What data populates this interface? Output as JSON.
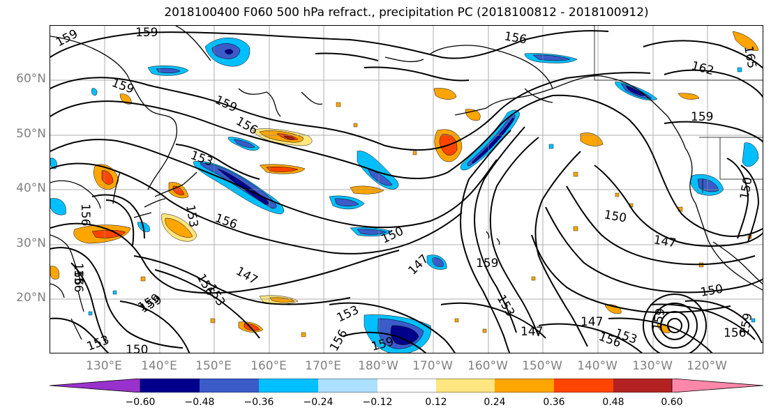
{
  "title": "2018100400 F060 500 hPa refract., precipitation PC (2018100812 - 2018100912)",
  "lat_labels": [
    "60°N",
    "50°N",
    "40°N",
    "30°N",
    "20°N"
  ],
  "lon_labels": [
    "130°E",
    "140°E",
    "150°E",
    "160°E",
    "170°E",
    "180°W",
    "170°W",
    "160°W",
    "150°W",
    "140°W",
    "130°W",
    "120°W"
  ],
  "colorbar": {
    "ticks": [
      "−0.60",
      "−0.48",
      "−0.36",
      "−0.24",
      "−0.12",
      "0.12",
      "0.24",
      "0.36",
      "0.48",
      "0.60"
    ],
    "colors": [
      "#9932CC",
      "#00008B",
      "#3A5BC8",
      "#00BFFF",
      "#ADDFFF",
      "#FFFFFF",
      "#FFE680",
      "#FFA500",
      "#FF4500",
      "#B22222",
      "#FF88AA"
    ]
  },
  "contour_labels": [
    {
      "text": "159"
    },
    {
      "text": "159"
    },
    {
      "text": "159"
    },
    {
      "text": "159"
    },
    {
      "text": "156"
    },
    {
      "text": "153"
    },
    {
      "text": "156"
    },
    {
      "text": "156"
    },
    {
      "text": "150"
    },
    {
      "text": "147"
    },
    {
      "text": "147"
    },
    {
      "text": "159"
    },
    {
      "text": "156"
    },
    {
      "text": "162"
    },
    {
      "text": "159"
    },
    {
      "text": "150"
    },
    {
      "text": "147"
    },
    {
      "text": "150"
    },
    {
      "text": "147"
    },
    {
      "text": "147"
    },
    {
      "text": "153"
    },
    {
      "text": "156"
    },
    {
      "text": "153"
    },
    {
      "text": "159"
    },
    {
      "text": "156"
    },
    {
      "text": "153"
    },
    {
      "text": "150"
    },
    {
      "text": "153"
    },
    {
      "text": "156"
    },
    {
      "text": "159"
    },
    {
      "text": "159"
    },
    {
      "text": "156"
    },
    {
      "text": "159"
    },
    {
      "text": "150"
    },
    {
      "text": "153"
    },
    {
      "text": "156"
    },
    {
      "text": "159"
    },
    {
      "text": "165"
    },
    {
      "text": "153"
    },
    {
      "text": "156"
    }
  ]
}
